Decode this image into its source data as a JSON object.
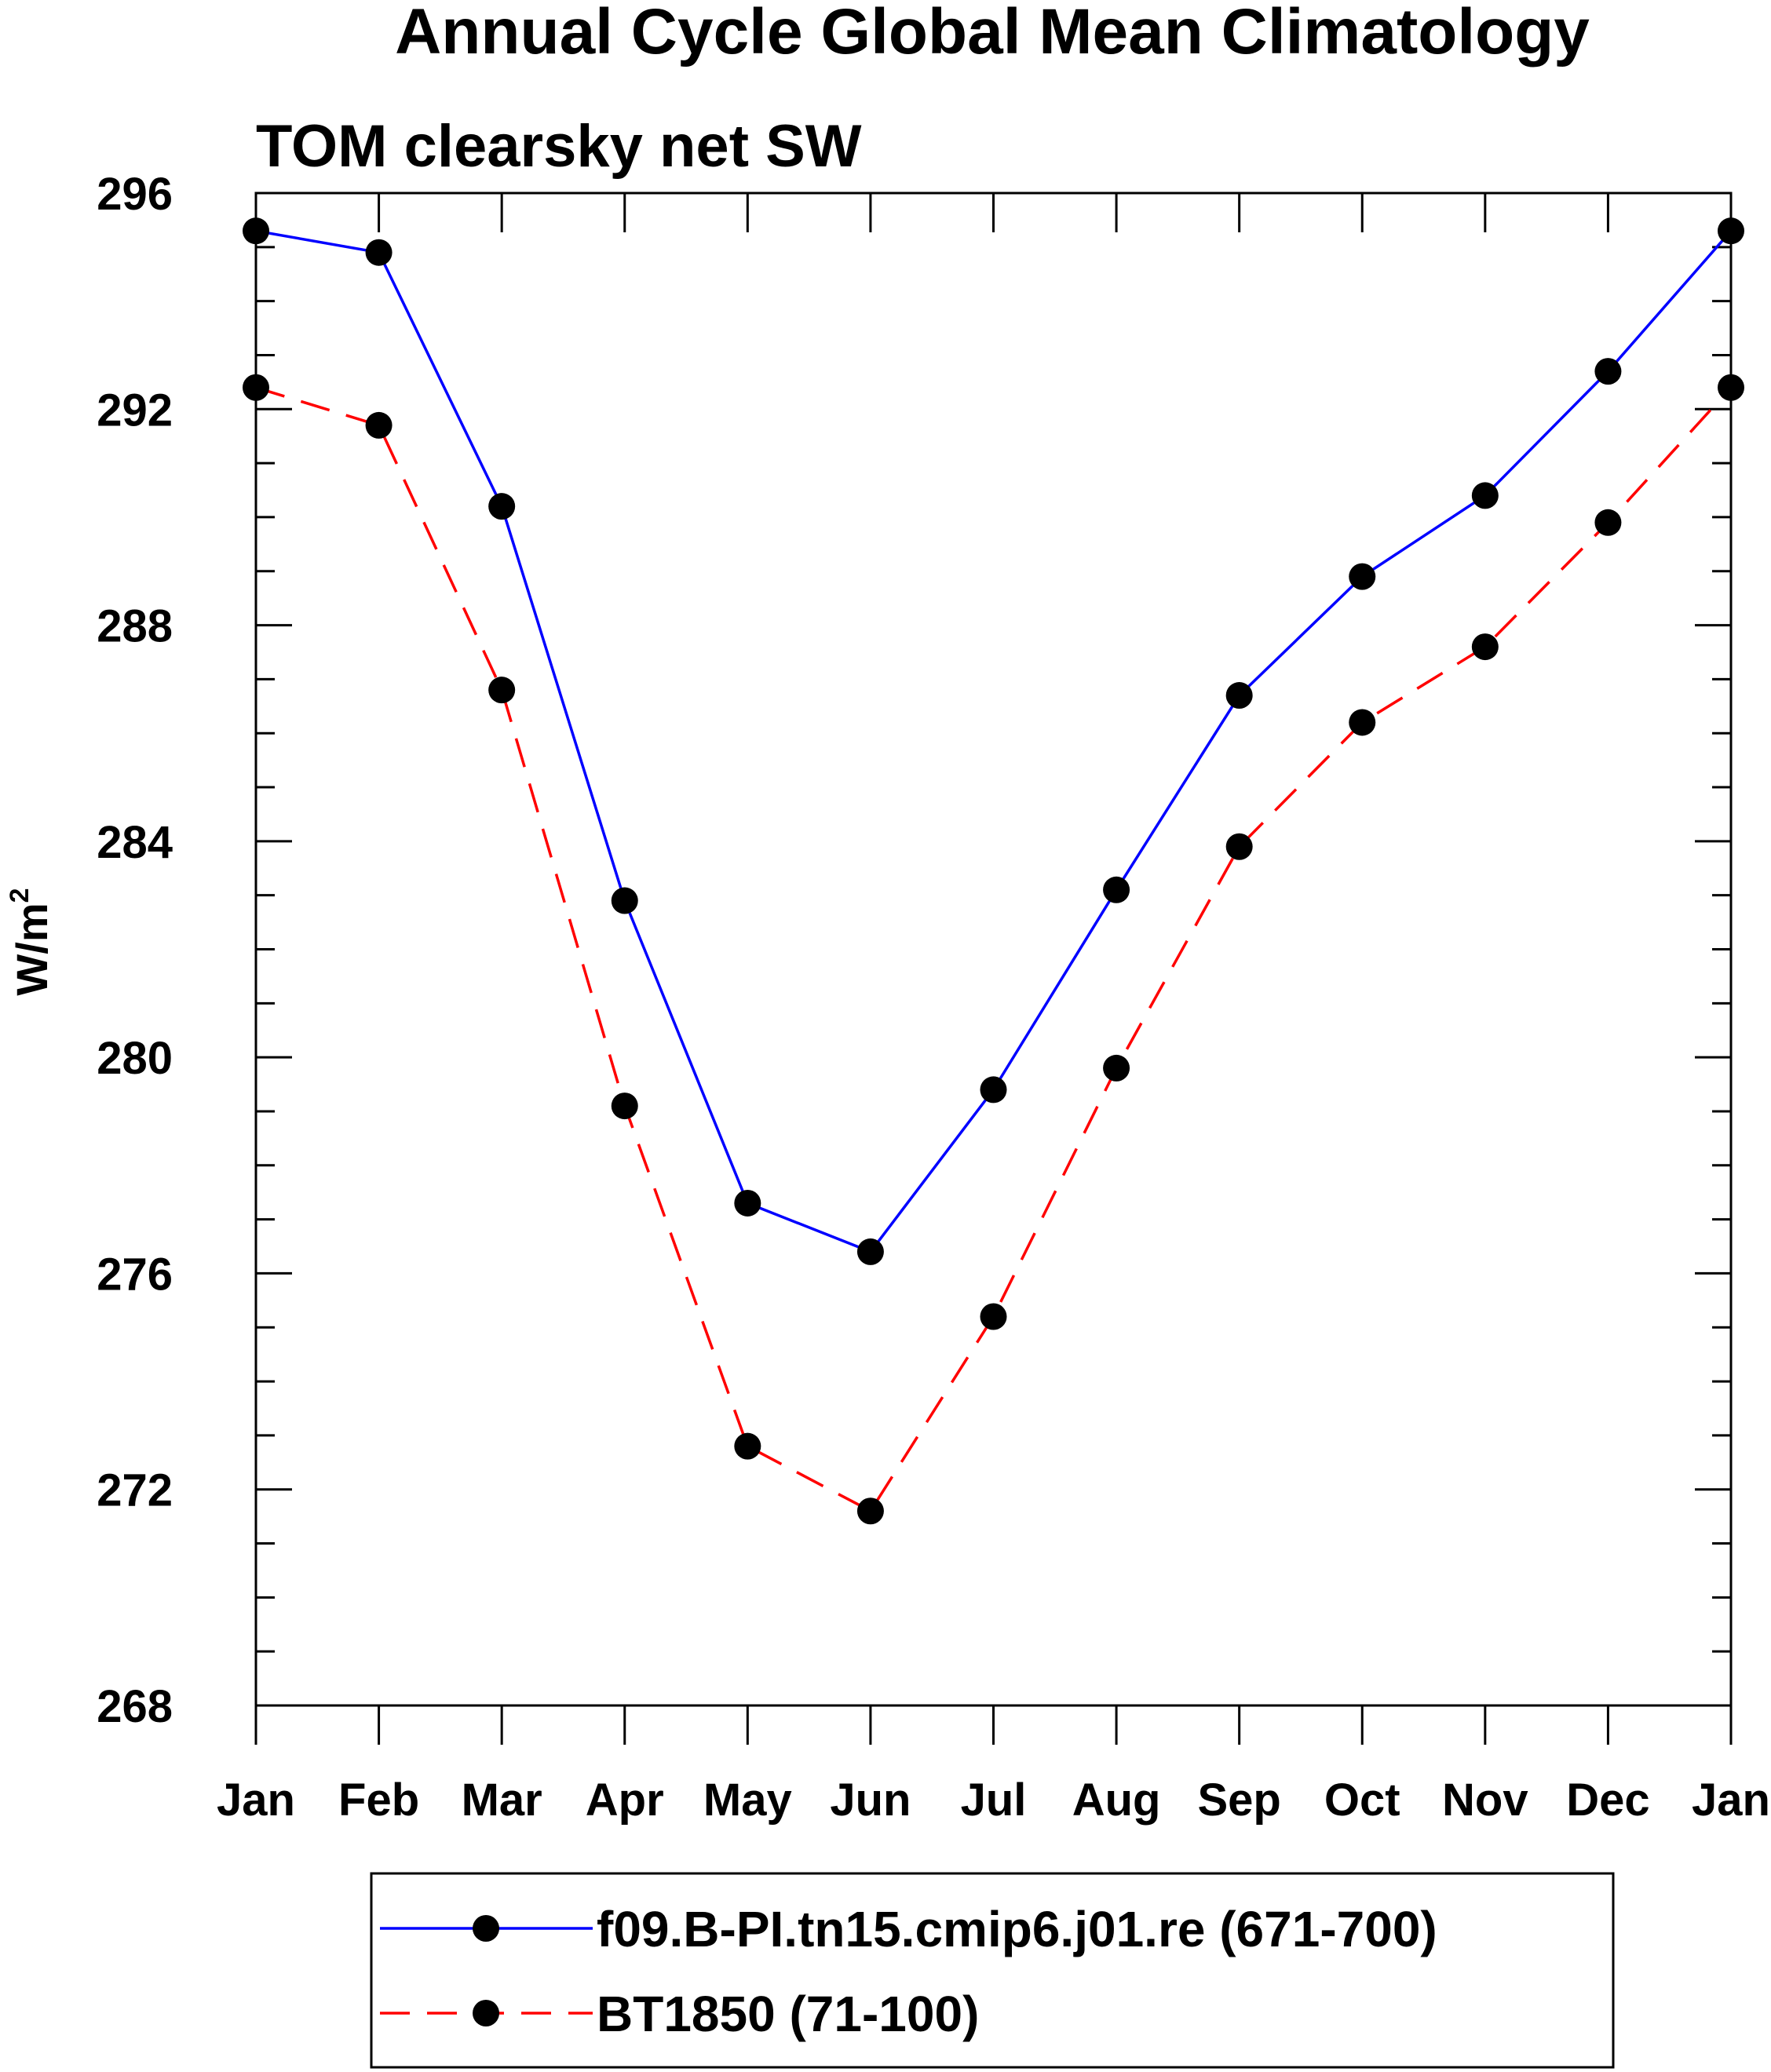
{
  "chart_data": {
    "type": "line",
    "title": "Annual Cycle Global Mean Climatology",
    "subtitle": "TOM clearsky net SW",
    "ylabel": "W/m",
    "ylabel_sup": "2",
    "categories": [
      "Jan",
      "Feb",
      "Mar",
      "Apr",
      "May",
      "Jun",
      "Jul",
      "Aug",
      "Sep",
      "Oct",
      "Nov",
      "Dec",
      "Jan"
    ],
    "ylim": [
      268,
      296
    ],
    "yticks": [
      268,
      272,
      276,
      280,
      284,
      288,
      292,
      296
    ],
    "grid": false,
    "legend_position": "bottom-center",
    "series": [
      {
        "name": "f09.B-PI.tn15.cmip6.j01.re (671-700)",
        "color": "#0000ff",
        "dash": "solid",
        "marker": "filled-circle",
        "values": [
          295.3,
          294.9,
          290.2,
          282.9,
          277.3,
          276.4,
          279.4,
          283.1,
          286.7,
          288.9,
          290.4,
          292.7,
          295.3
        ]
      },
      {
        "name": "BT1850 (71-100)",
        "color": "#ff0000",
        "dash": "dashed",
        "marker": "filled-circle",
        "values": [
          292.4,
          291.7,
          286.8,
          279.1,
          272.8,
          271.6,
          275.2,
          279.8,
          283.9,
          286.2,
          287.6,
          289.9,
          292.4
        ]
      }
    ]
  }
}
